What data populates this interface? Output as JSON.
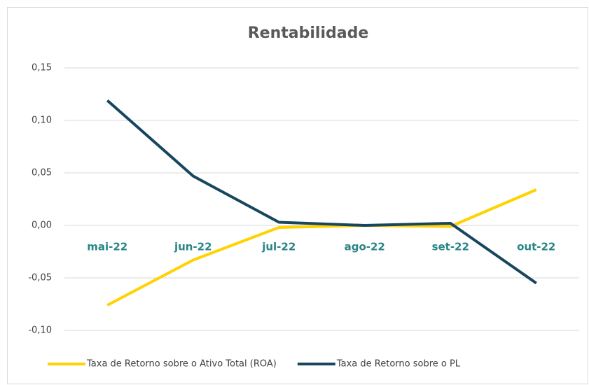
{
  "chart_data": {
    "type": "line",
    "title": "Rentabilidade",
    "categories": [
      "mai-22",
      "jun-22",
      "jul-22",
      "ago-22",
      "set-22",
      "out-22"
    ],
    "series": [
      {
        "name": "Taxa de Retorno sobre o Ativo Total (ROA)",
        "color": "#ffd200",
        "values": [
          -0.076,
          -0.033,
          -0.002,
          0.0,
          -0.001,
          0.034
        ]
      },
      {
        "name": "Taxa de Retorno sobre o PL",
        "color": "#17465e",
        "values": [
          0.119,
          0.047,
          0.003,
          0.0,
          0.002,
          -0.055
        ]
      }
    ],
    "ylim": [
      -0.1,
      0.15
    ],
    "yticks": [
      {
        "value": -0.1,
        "label": "-0,10"
      },
      {
        "value": -0.05,
        "label": "-0,05"
      },
      {
        "value": 0,
        "label": "0,00"
      },
      {
        "value": 0.05,
        "label": "0,05"
      },
      {
        "value": 0.1,
        "label": "0,10"
      },
      {
        "value": 0.15,
        "label": "0,15"
      }
    ],
    "grid": true,
    "legend": "bottom",
    "category_label_color": "#2a8585"
  }
}
